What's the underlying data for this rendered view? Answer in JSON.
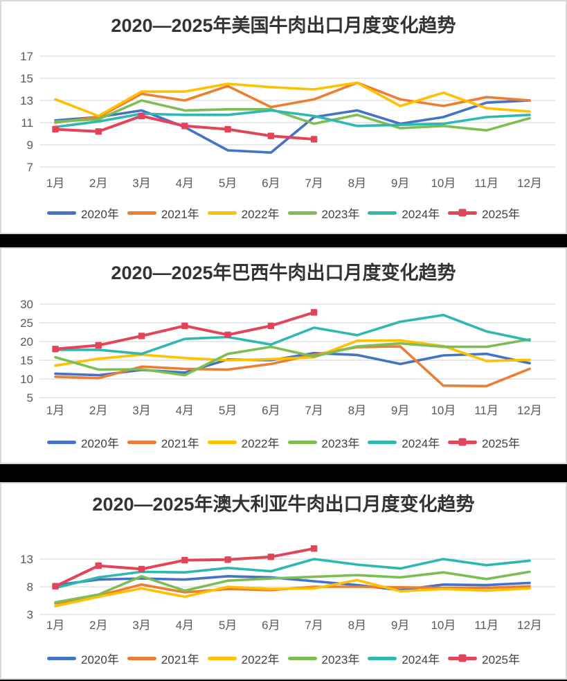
{
  "page": {
    "background": "#000000",
    "panel_background": "#ffffff",
    "panel_border": "#d8d8d8",
    "grid_color": "#d9d9d9",
    "title_color": "#333333",
    "axis_text_color": "#595959",
    "legend_text_color": "#404040"
  },
  "chart_data": [
    {
      "type": "line",
      "title": "2020—2025年美国牛肉出口月度变化趋势",
      "categories": [
        "1月",
        "2月",
        "3月",
        "4月",
        "5月",
        "6月",
        "7月",
        "8月",
        "9月",
        "10月",
        "11月",
        "12月"
      ],
      "yticks": [
        17,
        15,
        13,
        11,
        9,
        7
      ],
      "ylim": [
        7,
        17
      ],
      "grid": true,
      "legend_position": "bottom",
      "series": [
        {
          "name": "2020年",
          "color": "#4472C4",
          "marker": "none",
          "values": [
            11.2,
            11.5,
            12.1,
            10.6,
            8.5,
            8.3,
            11.5,
            12.1,
            10.9,
            11.5,
            12.8,
            13.0
          ]
        },
        {
          "name": "2021年",
          "color": "#ED7D31",
          "marker": "none",
          "values": [
            11.0,
            11.5,
            13.6,
            13.0,
            14.3,
            12.4,
            13.1,
            14.6,
            13.1,
            12.5,
            13.3,
            13.0
          ]
        },
        {
          "name": "2022年",
          "color": "#FFC000",
          "marker": "none",
          "values": [
            13.1,
            11.6,
            13.8,
            13.8,
            14.5,
            14.2,
            14.0,
            14.6,
            12.5,
            13.7,
            12.3,
            12.0
          ]
        },
        {
          "name": "2023年",
          "color": "#7CBE53",
          "marker": "none",
          "values": [
            11.1,
            11.3,
            13.0,
            12.1,
            12.2,
            12.2,
            10.9,
            11.7,
            10.5,
            10.7,
            10.3,
            11.4
          ]
        },
        {
          "name": "2024年",
          "color": "#2EB8B0",
          "marker": "none",
          "values": [
            10.6,
            11.1,
            11.8,
            11.7,
            11.7,
            12.1,
            11.6,
            10.7,
            10.8,
            10.9,
            11.5,
            11.7
          ]
        },
        {
          "name": "2025年",
          "color": "#E2455A",
          "marker": "square",
          "values": [
            10.4,
            10.2,
            11.6,
            10.7,
            10.4,
            9.8,
            9.5
          ]
        }
      ]
    },
    {
      "type": "line",
      "title": "2020—2025年巴西牛肉出口月度变化趋势",
      "categories": [
        "1月",
        "2月",
        "3月",
        "4月",
        "5月",
        "6月",
        "7月",
        "8月",
        "9月",
        "10月",
        "11月",
        "12月"
      ],
      "yticks": [
        30,
        25,
        20,
        15,
        10,
        5
      ],
      "ylim": [
        5,
        30
      ],
      "grid": true,
      "legend_position": "bottom",
      "series": [
        {
          "name": "2020年",
          "color": "#4472C4",
          "marker": "none",
          "values": [
            11.4,
            11.0,
            12.4,
            11.7,
            15.2,
            15.0,
            16.9,
            16.4,
            14.0,
            16.3,
            16.7,
            14.2
          ]
        },
        {
          "name": "2021年",
          "color": "#ED7D31",
          "marker": "none",
          "values": [
            10.6,
            10.2,
            13.3,
            12.7,
            12.5,
            14.0,
            16.5,
            18.5,
            18.7,
            8.2,
            8.1,
            12.7
          ]
        },
        {
          "name": "2022年",
          "color": "#FFC000",
          "marker": "none",
          "values": [
            13.6,
            15.4,
            16.5,
            15.6,
            15.0,
            15.3,
            15.8,
            20.2,
            20.3,
            18.8,
            14.8,
            15.1
          ]
        },
        {
          "name": "2023年",
          "color": "#7CBE53",
          "marker": "none",
          "values": [
            15.8,
            12.5,
            12.6,
            11.0,
            16.7,
            18.6,
            16.0,
            18.7,
            19.5,
            18.6,
            18.6,
            20.6
          ]
        },
        {
          "name": "2024年",
          "color": "#2EB8B0",
          "marker": "none",
          "values": [
            17.8,
            17.8,
            16.7,
            20.7,
            21.2,
            19.2,
            23.7,
            21.7,
            25.3,
            27.1,
            22.7,
            20.3
          ]
        },
        {
          "name": "2025年",
          "color": "#E2455A",
          "marker": "square",
          "values": [
            18.0,
            19.0,
            21.5,
            24.2,
            21.8,
            24.2,
            27.8
          ]
        }
      ]
    },
    {
      "type": "line",
      "title": "2020—2025年澳大利亚牛肉出口月度变化趋势",
      "categories": [
        "1月",
        "2月",
        "3月",
        "4月",
        "5月",
        "6月",
        "7月",
        "8月",
        "9月",
        "10月",
        "11月",
        "12月"
      ],
      "yticks": [
        13,
        8,
        3
      ],
      "ylim": [
        3,
        13
      ],
      "grid": true,
      "legend_position": "bottom",
      "series": [
        {
          "name": "2020年",
          "color": "#4472C4",
          "marker": "none",
          "values": [
            8.3,
            9.3,
            9.5,
            9.3,
            9.9,
            9.7,
            9.0,
            8.3,
            7.4,
            8.4,
            8.3,
            8.7
          ]
        },
        {
          "name": "2021年",
          "color": "#ED7D31",
          "marker": "none",
          "values": [
            5.0,
            6.4,
            8.4,
            7.0,
            7.6,
            7.4,
            8.0,
            8.0,
            7.9,
            7.8,
            7.8,
            8.1
          ]
        },
        {
          "name": "2022年",
          "color": "#FFC000",
          "marker": "none",
          "values": [
            4.5,
            6.2,
            7.7,
            6.2,
            8.0,
            7.6,
            7.7,
            9.2,
            7.2,
            7.6,
            7.3,
            7.7
          ]
        },
        {
          "name": "2023年",
          "color": "#7CBE53",
          "marker": "none",
          "values": [
            5.2,
            6.6,
            9.9,
            7.3,
            9.1,
            9.5,
            9.8,
            10.1,
            9.7,
            10.6,
            9.4,
            10.7
          ]
        },
        {
          "name": "2024年",
          "color": "#2EB8B0",
          "marker": "none",
          "values": [
            7.8,
            9.7,
            10.7,
            10.6,
            11.4,
            10.8,
            13.0,
            12.0,
            11.3,
            13.0,
            11.9,
            12.7
          ]
        },
        {
          "name": "2025年",
          "color": "#E2455A",
          "marker": "square",
          "values": [
            8.1,
            11.8,
            11.2,
            12.8,
            12.9,
            13.4,
            14.9
          ]
        }
      ]
    }
  ]
}
